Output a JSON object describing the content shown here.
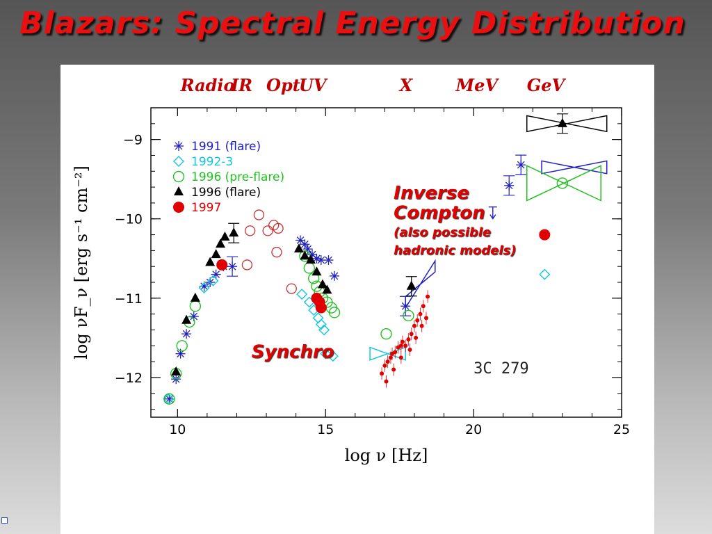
{
  "slide": {
    "title": "Blazars: Spectral Energy Distribution"
  },
  "chart_data": {
    "type": "scatter",
    "object": "3C 279",
    "xlabel": "log ν   [Hz]",
    "ylabel": "log νF_ν  [erg s⁻¹ cm⁻²]",
    "xlim": [
      9.1,
      25
    ],
    "ylim": [
      -12.5,
      -8.6
    ],
    "xticks": [
      10,
      15,
      20,
      25
    ],
    "yticks": [
      -9,
      -10,
      -11,
      -12
    ],
    "bands": [
      {
        "label": "Radio",
        "x": 10.1
      },
      {
        "label": "IR",
        "x": 11.8
      },
      {
        "label": "Opt",
        "x": 13.0
      },
      {
        "label": "UV",
        "x": 14.1
      },
      {
        "label": "X",
        "x": 17.5
      },
      {
        "label": "MeV",
        "x": 19.4
      },
      {
        "label": "GeV",
        "x": 21.8
      }
    ],
    "annotations": [
      {
        "text": "Inverse",
        "x": 17.3,
        "y": -9.75,
        "color": "#e00000"
      },
      {
        "text": "Compton",
        "x": 17.3,
        "y": -10.0,
        "color": "#e00000"
      },
      {
        "text": "(also possible",
        "x": 17.3,
        "y": -10.22,
        "color": "#e00000"
      },
      {
        "text": "hadronic models)",
        "x": 17.3,
        "y": -10.45,
        "color": "#e00000"
      },
      {
        "text": "Synchro",
        "x": 12.5,
        "y": -11.75,
        "color": "#e00000"
      },
      {
        "text": "3C  279",
        "x": 20.0,
        "y": -11.95,
        "color": "#222222"
      }
    ],
    "series": [
      {
        "name": "1991 (flare)",
        "color": "#2020c0",
        "marker": "asterisk",
        "points": [
          [
            9.72,
            -12.27
          ],
          [
            9.95,
            -12.02
          ],
          [
            10.1,
            -11.7
          ],
          [
            10.3,
            -11.45
          ],
          [
            10.55,
            -11.23
          ],
          [
            10.9,
            -10.85
          ],
          [
            11.1,
            -10.8
          ],
          [
            11.3,
            -10.7
          ],
          [
            11.55,
            -10.6
          ],
          [
            11.85,
            -10.6
          ],
          [
            14.15,
            -10.27
          ],
          [
            14.3,
            -10.32
          ],
          [
            14.4,
            -10.38
          ],
          [
            14.55,
            -10.45
          ],
          [
            14.7,
            -10.5
          ],
          [
            14.85,
            -10.52
          ],
          [
            15.1,
            -10.52
          ],
          [
            15.3,
            -10.72
          ],
          [
            17.7,
            -11.1
          ],
          [
            21.2,
            -9.58
          ],
          [
            21.6,
            -9.32
          ]
        ],
        "bowties": [
          {
            "x1": 22.3,
            "x2": 24.5,
            "y": -9.35,
            "spread": 0.08
          },
          {
            "x1": 17.7,
            "x2": 18.7,
            "y1": -11.05,
            "y2": -10.6,
            "spread": 0.07
          }
        ],
        "limits": [
          [
            20.65,
            -9.85
          ]
        ]
      },
      {
        "name": "1992-3",
        "color": "#10c8e0",
        "marker": "diamond",
        "points": [
          [
            9.7,
            -12.27
          ],
          [
            10.9,
            -10.87
          ],
          [
            11.2,
            -10.78
          ],
          [
            14.2,
            -10.95
          ],
          [
            14.45,
            -11.05
          ],
          [
            14.6,
            -11.15
          ],
          [
            14.75,
            -11.25
          ],
          [
            14.85,
            -11.33
          ],
          [
            14.95,
            -11.4
          ],
          [
            15.0,
            -11.7
          ],
          [
            15.25,
            -11.73
          ],
          [
            22.4,
            -10.7
          ]
        ],
        "bowties": [
          {
            "x1": 16.5,
            "x2": 17.7,
            "y": -11.7,
            "spread": 0.08
          }
        ]
      },
      {
        "name": "1996 (pre-flare)",
        "color": "#20c020",
        "marker": "circle",
        "points": [
          [
            9.72,
            -12.27
          ],
          [
            9.95,
            -11.95
          ],
          [
            10.15,
            -11.6
          ],
          [
            10.4,
            -11.3
          ],
          [
            10.6,
            -11.1
          ],
          [
            14.3,
            -10.47
          ],
          [
            14.45,
            -10.62
          ],
          [
            14.6,
            -10.75
          ],
          [
            14.7,
            -10.85
          ],
          [
            14.8,
            -10.92
          ],
          [
            14.9,
            -11.0
          ],
          [
            15.05,
            -11.05
          ],
          [
            15.2,
            -11.12
          ],
          [
            15.3,
            -11.18
          ],
          [
            17.05,
            -11.45
          ],
          [
            17.8,
            -11.22
          ],
          [
            23.0,
            -9.55
          ]
        ],
        "bowties": [
          {
            "x1": 21.8,
            "x2": 24.3,
            "y": -9.55,
            "spread": 0.22
          }
        ]
      },
      {
        "name": "1996 (flare)",
        "color": "#000000",
        "marker": "triangle",
        "points": [
          [
            9.95,
            -11.93
          ],
          [
            10.3,
            -11.28
          ],
          [
            10.6,
            -11.0
          ],
          [
            11.1,
            -10.55
          ],
          [
            11.3,
            -10.45
          ],
          [
            11.45,
            -10.32
          ],
          [
            11.6,
            -10.23
          ],
          [
            11.9,
            -10.18
          ],
          [
            14.1,
            -10.38
          ],
          [
            14.3,
            -10.47
          ],
          [
            14.5,
            -10.52
          ],
          [
            14.7,
            -10.67
          ],
          [
            14.9,
            -10.83
          ],
          [
            15.05,
            -10.9
          ],
          [
            17.9,
            -10.85
          ],
          [
            23.0,
            -8.8
          ]
        ],
        "bowties": [
          {
            "x1": 21.8,
            "x2": 24.5,
            "y": -8.8,
            "spread": 0.1
          }
        ]
      },
      {
        "name": "1997",
        "color": "#e00000",
        "marker": "dot",
        "points": [
          [
            11.5,
            -10.58
          ],
          [
            14.7,
            -11.0
          ],
          [
            14.8,
            -11.05
          ],
          [
            14.85,
            -11.12
          ],
          [
            22.4,
            -10.2
          ],
          [
            16.9,
            -11.95
          ],
          [
            17.0,
            -11.85
          ],
          [
            17.1,
            -11.8
          ],
          [
            17.2,
            -11.75
          ],
          [
            17.25,
            -11.7
          ],
          [
            17.35,
            -11.68
          ],
          [
            17.45,
            -11.62
          ],
          [
            17.55,
            -11.6
          ],
          [
            17.6,
            -11.55
          ],
          [
            17.7,
            -11.6
          ],
          [
            17.8,
            -11.52
          ],
          [
            17.9,
            -11.45
          ],
          [
            18.0,
            -11.35
          ],
          [
            18.1,
            -11.28
          ],
          [
            18.2,
            -11.2
          ],
          [
            18.3,
            -11.1
          ],
          [
            18.45,
            -10.98
          ],
          [
            17.05,
            -12.05
          ],
          [
            17.3,
            -11.9
          ],
          [
            17.55,
            -11.75
          ],
          [
            17.85,
            -11.65
          ],
          [
            18.05,
            -11.5
          ],
          [
            18.25,
            -11.35
          ],
          [
            18.4,
            -11.25
          ]
        ]
      },
      {
        "name": "",
        "color": "#c83030",
        "marker": "open-circle",
        "points": [
          [
            12.35,
            -10.58
          ],
          [
            12.45,
            -10.15
          ],
          [
            12.75,
            -9.95
          ],
          [
            13.05,
            -10.15
          ],
          [
            13.25,
            -10.08
          ],
          [
            13.4,
            -10.12
          ],
          [
            13.35,
            -10.42
          ],
          [
            13.85,
            -10.88
          ]
        ]
      }
    ]
  }
}
